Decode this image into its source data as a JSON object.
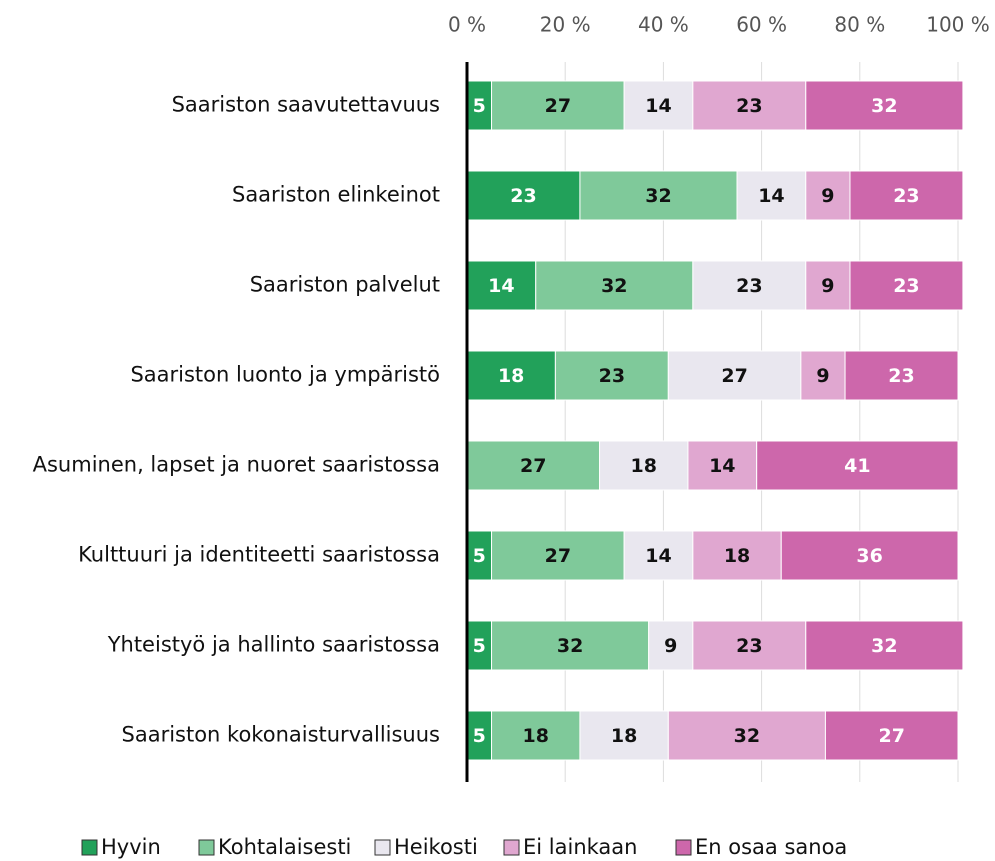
{
  "chart_data": {
    "type": "stacked-bar-horizontal",
    "categories": [
      "Saariston saavutettavuus",
      "Saariston elinkeinot",
      "Saariston palvelut",
      "Saariston luonto ja ympäristö",
      "Asuminen, lapset ja nuoret saaristossa",
      "Kulttuuri ja identiteetti saaristossa",
      "Yhteistyö ja hallinto saaristossa",
      "Saariston kokonaisturvallisuus"
    ],
    "series": [
      {
        "name": "Hyvin",
        "color": "#22a15a",
        "values": [
          5,
          23,
          14,
          18,
          null,
          5,
          5,
          5
        ]
      },
      {
        "name": "Kohtalaisesti",
        "color": "#7fc99a",
        "values": [
          27,
          32,
          32,
          23,
          27,
          27,
          32,
          18
        ]
      },
      {
        "name": "Heikosti",
        "color": "#e9e7ef",
        "values": [
          14,
          14,
          23,
          27,
          18,
          14,
          9,
          18
        ]
      },
      {
        "name": "Ei lainkaan",
        "color": "#e0a7d0",
        "values": [
          23,
          9,
          9,
          9,
          14,
          18,
          23,
          32
        ]
      },
      {
        "name": "En osaa sanoa",
        "color": "#cd67ab",
        "values": [
          32,
          23,
          23,
          23,
          41,
          36,
          32,
          27
        ]
      }
    ],
    "xlim": [
      0,
      100
    ],
    "xticks": [
      {
        "value": 0,
        "label": "0 %"
      },
      {
        "value": 20,
        "label": "20 %"
      },
      {
        "value": 40,
        "label": "40 %"
      },
      {
        "value": 60,
        "label": "60 %"
      },
      {
        "value": 80,
        "label": "80 %"
      },
      {
        "value": 100,
        "label": "100 %"
      }
    ],
    "grid": true,
    "legend": "bottom"
  }
}
